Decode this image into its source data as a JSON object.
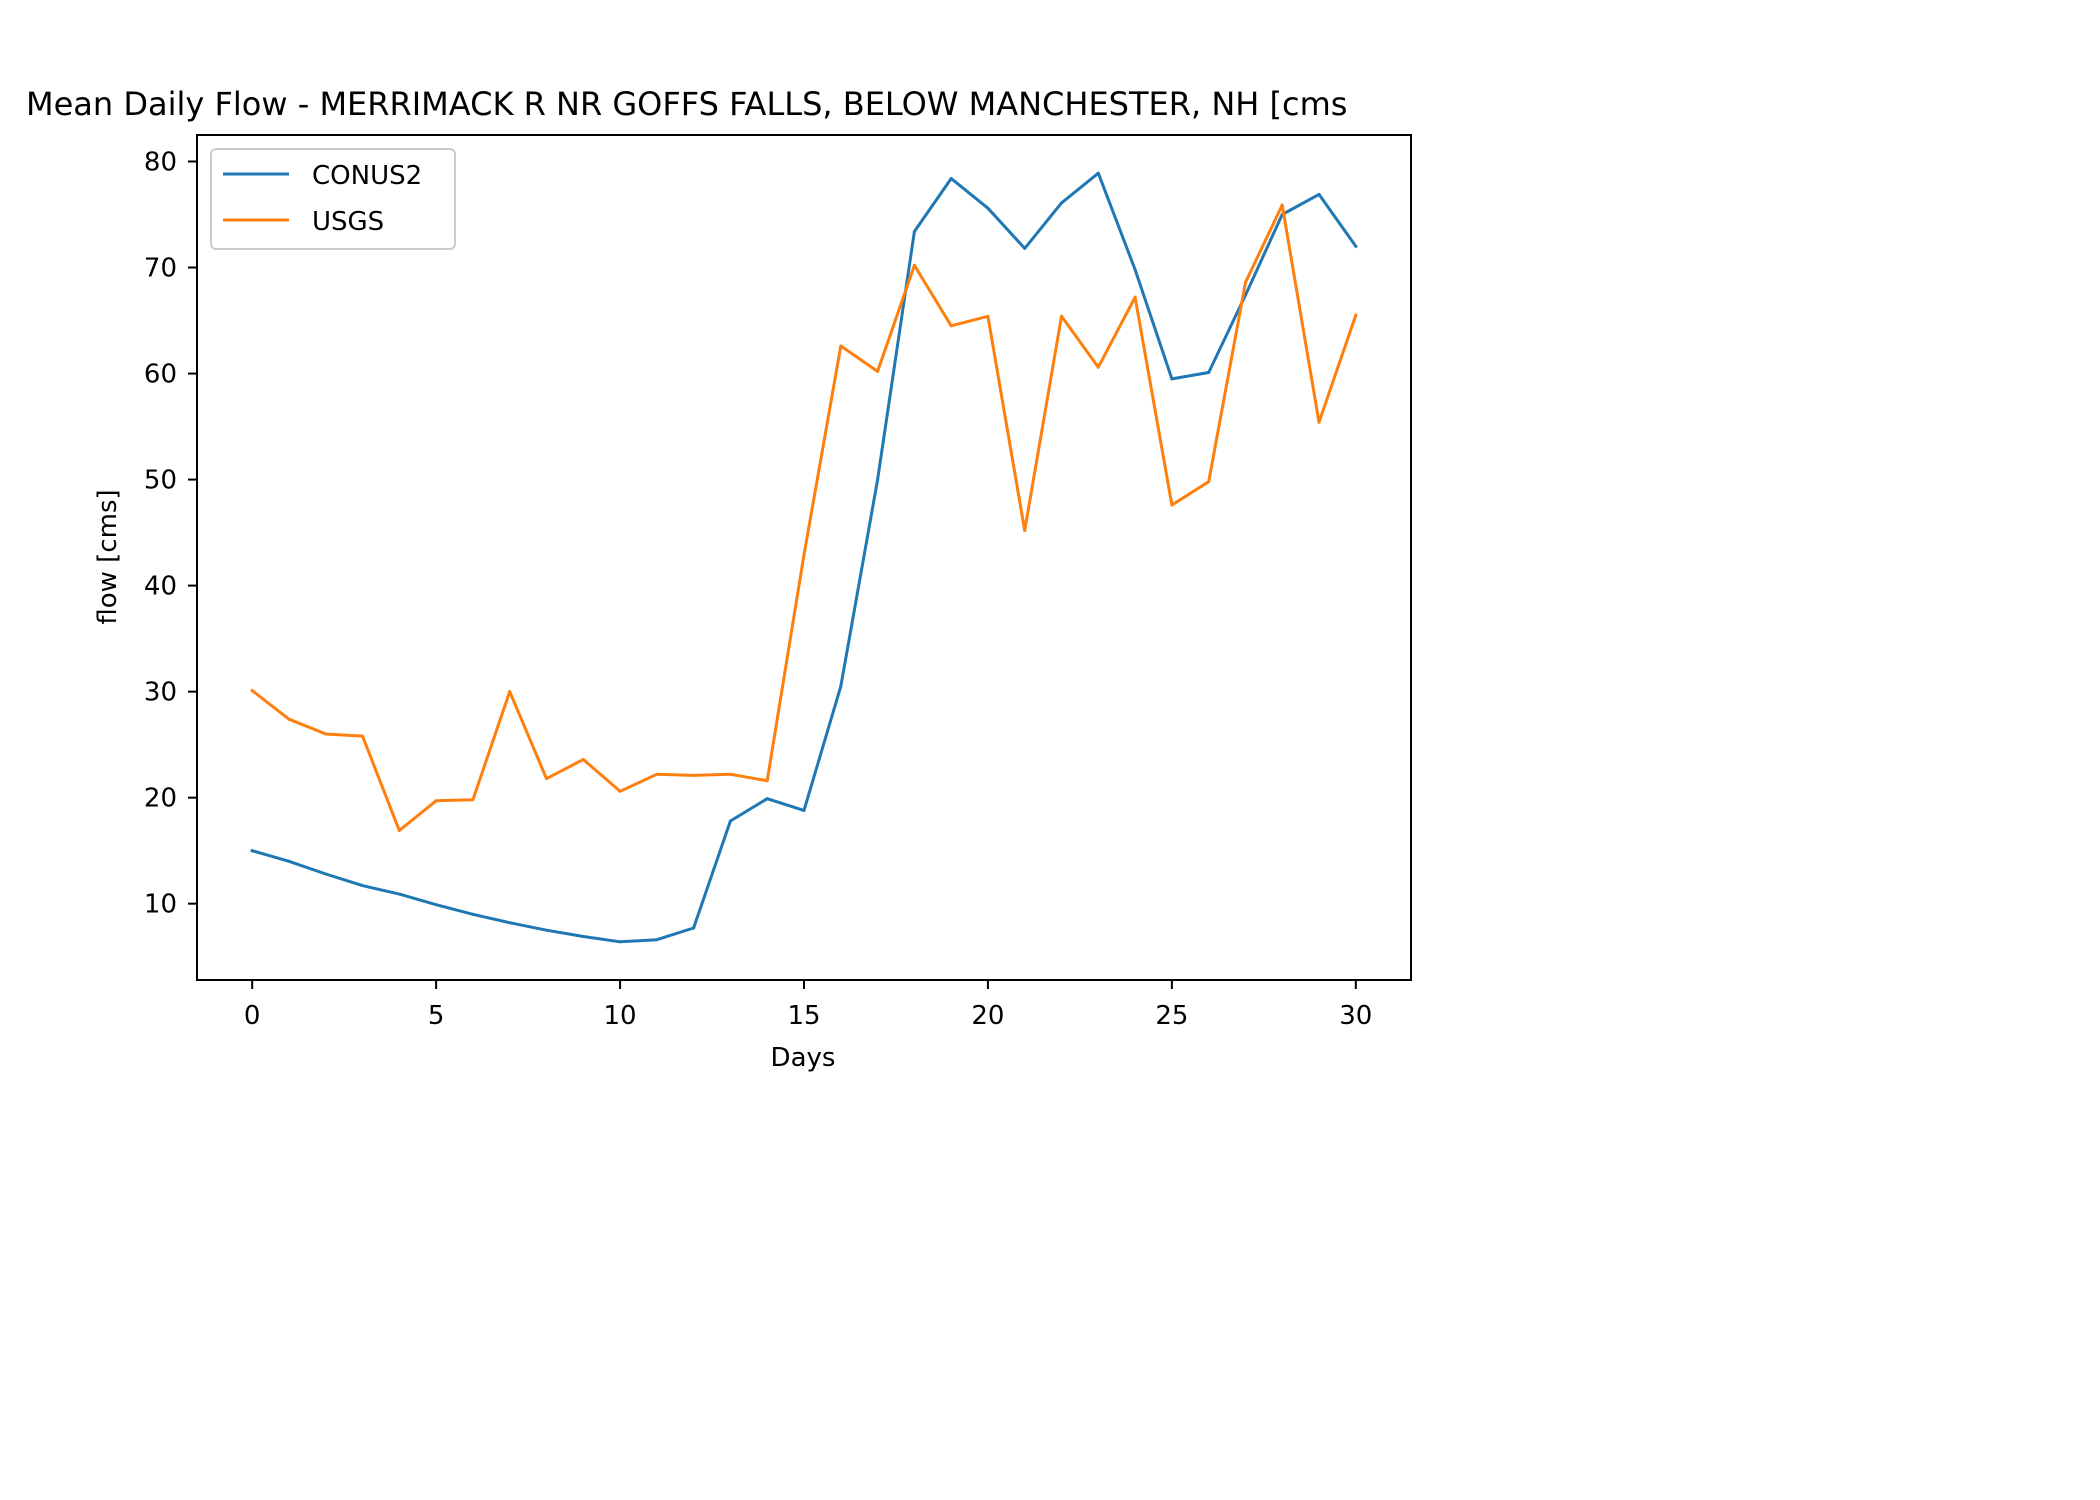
{
  "chart_data": {
    "type": "line",
    "title": "Mean Daily Flow - MERRIMACK R NR GOFFS FALLS, BELOW MANCHESTER, NH [cms",
    "xlabel": "Days",
    "ylabel": "flow [cms]",
    "xlim": [
      -1.5,
      31.5
    ],
    "ylim": [
      2.8,
      82.5
    ],
    "xticks": [
      0,
      5,
      10,
      15,
      20,
      25,
      30
    ],
    "yticks": [
      10,
      20,
      30,
      40,
      50,
      60,
      70,
      80
    ],
    "grid": false,
    "legend_position": "top-left",
    "x": [
      0,
      1,
      2,
      3,
      4,
      5,
      6,
      7,
      8,
      9,
      10,
      11,
      12,
      13,
      14,
      15,
      16,
      17,
      18,
      19,
      20,
      21,
      22,
      23,
      24,
      25,
      26,
      27,
      28,
      29,
      30
    ],
    "series": [
      {
        "name": "CONUS2",
        "color": "#1f77b4",
        "values": [
          15.0,
          14.0,
          12.8,
          11.7,
          10.9,
          9.9,
          9.0,
          8.2,
          7.5,
          6.9,
          6.4,
          6.6,
          7.7,
          17.8,
          19.9,
          18.8,
          30.5,
          50.0,
          73.4,
          78.4,
          75.6,
          71.8,
          76.1,
          78.9,
          69.8,
          59.5,
          60.1,
          67.4,
          75.0,
          76.9,
          72.0
        ]
      },
      {
        "name": "USGS",
        "color": "#ff7f0e",
        "values": [
          30.1,
          27.4,
          26.0,
          25.8,
          16.9,
          19.7,
          19.8,
          30.0,
          21.8,
          23.6,
          20.6,
          22.2,
          22.1,
          22.2,
          21.6,
          42.9,
          62.6,
          60.2,
          70.2,
          64.5,
          65.4,
          45.2,
          65.4,
          60.6,
          67.2,
          47.6,
          49.8,
          68.6,
          75.9,
          55.4,
          65.5
        ]
      }
    ]
  }
}
